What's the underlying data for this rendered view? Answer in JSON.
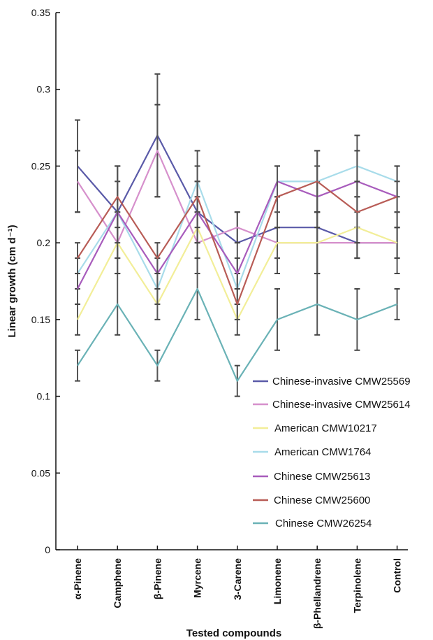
{
  "chart_data": {
    "type": "line",
    "xlabel": "Tested compounds",
    "ylabel": "Linear growth (cm d⁻¹)",
    "ylim": [
      0,
      0.35
    ],
    "yticks": [
      "0",
      "0.05",
      "0.1",
      "0.15",
      "0.2",
      "0.25",
      "0.3",
      "0.35"
    ],
    "yticks_values": [
      0,
      0.05,
      0.1,
      0.15,
      0.2,
      0.25,
      0.3,
      0.35
    ],
    "grid": false,
    "legend_position": "lower-right",
    "categories": [
      "α-Pinene",
      "Camphene",
      "β-Pinene",
      "Myrcene",
      "3-Carene",
      "Limonene",
      "β-Phellandrene",
      "Terpinolene",
      "Control"
    ],
    "series": [
      {
        "name": "Chinese-invasive CMW25569",
        "color": "#5a5aa8",
        "values": [
          0.25,
          0.22,
          0.27,
          0.22,
          0.2,
          0.21,
          0.21,
          0.2,
          0.2
        ],
        "errors": [
          0.03,
          0.03,
          0.04,
          0.02,
          0.02,
          0.02,
          0.03,
          0.01,
          0.02
        ]
      },
      {
        "name": "Chinese-invasive CMW25614",
        "color": "#d690cc",
        "values": [
          0.24,
          0.2,
          0.26,
          0.2,
          0.21,
          0.2,
          0.2,
          0.2,
          0.2
        ],
        "errors": [
          0.02,
          0.02,
          0.03,
          0.02,
          0.01,
          0.01,
          0.02,
          0.01,
          0.01
        ]
      },
      {
        "name": "American CMW10217",
        "color": "#f2ee98",
        "values": [
          0.15,
          0.2,
          0.16,
          0.21,
          0.15,
          0.2,
          0.2,
          0.21,
          0.2
        ],
        "errors": [
          0.01,
          0.02,
          0.01,
          0.02,
          0.01,
          0.02,
          0.02,
          0.02,
          0.01
        ]
      },
      {
        "name": "American CMW1764",
        "color": "#a8dcea",
        "values": [
          0.18,
          0.22,
          0.17,
          0.24,
          0.17,
          0.24,
          0.24,
          0.25,
          0.24
        ],
        "errors": [
          0.01,
          0.03,
          0.01,
          0.02,
          0.01,
          0.01,
          0.02,
          0.02,
          0.01
        ]
      },
      {
        "name": "Chinese CMW25613",
        "color": "#a85cbc",
        "values": [
          0.17,
          0.22,
          0.18,
          0.22,
          0.18,
          0.24,
          0.23,
          0.24,
          0.23
        ],
        "errors": [
          0.01,
          0.02,
          0.01,
          0.02,
          0.01,
          0.01,
          0.02,
          0.02,
          0.01
        ]
      },
      {
        "name": "Chinese CMW25600",
        "color": "#b85c56",
        "values": [
          0.19,
          0.23,
          0.19,
          0.23,
          0.16,
          0.23,
          0.24,
          0.22,
          0.23
        ],
        "errors": [
          0.01,
          0.02,
          0.01,
          0.02,
          0.01,
          0.02,
          0.02,
          0.02,
          0.02
        ]
      },
      {
        "name": "Chinese CMW26254",
        "color": "#6ab2b6",
        "values": [
          0.12,
          0.16,
          0.12,
          0.17,
          0.11,
          0.15,
          0.16,
          0.15,
          0.16
        ],
        "errors": [
          0.01,
          0.02,
          0.01,
          0.02,
          0.01,
          0.02,
          0.02,
          0.02,
          0.01
        ]
      }
    ]
  }
}
